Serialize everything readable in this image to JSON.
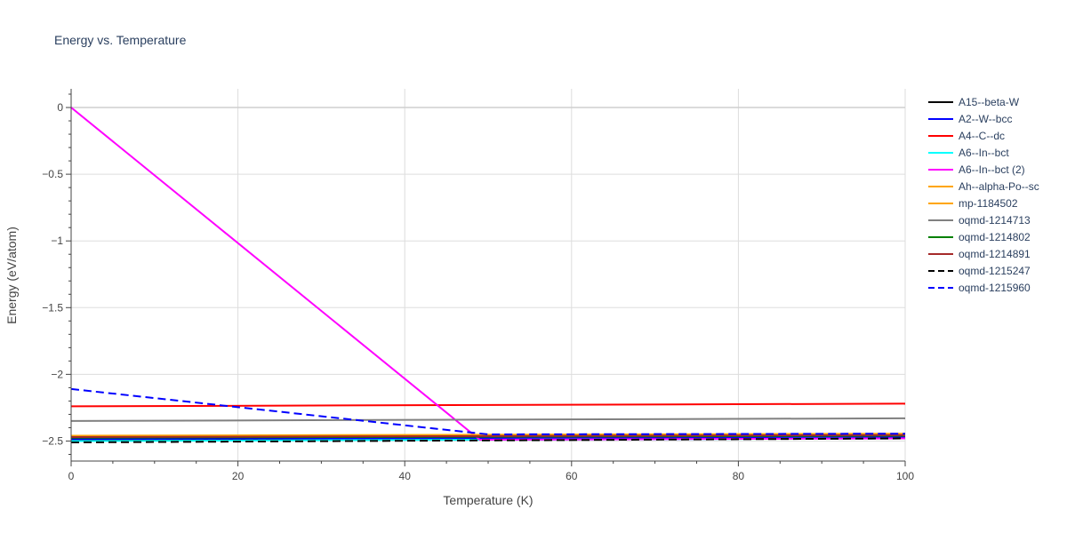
{
  "chart_data": {
    "type": "line",
    "title": "Energy vs. Temperature",
    "xlabel": "Temperature (K)",
    "ylabel": "Energy (eV/atom)",
    "xlim": [
      0,
      100
    ],
    "ylim": [
      -2.65,
      0.14
    ],
    "xticks": [
      0,
      20,
      40,
      60,
      80,
      100
    ],
    "xtick_labels": [
      "0",
      "20",
      "40",
      "60",
      "80",
      "100"
    ],
    "yticks": [
      0,
      -0.5,
      -1,
      -1.5,
      -2,
      -2.5
    ],
    "ytick_labels": [
      "0",
      "−0.5",
      "−1",
      "−1.5",
      "−2",
      "−2.5"
    ],
    "grid": true,
    "legend_position": "right",
    "series": [
      {
        "name": "A15--beta-W",
        "color": "#000000",
        "dash": "solid",
        "x": [
          0,
          100
        ],
        "y": [
          -2.49,
          -2.475
        ]
      },
      {
        "name": "A2--W--bcc",
        "color": "#0000ff",
        "dash": "solid",
        "x": [
          0,
          100
        ],
        "y": [
          -2.485,
          -2.47
        ]
      },
      {
        "name": "A4--C--dc",
        "color": "#ff0000",
        "dash": "solid",
        "x": [
          0,
          100
        ],
        "y": [
          -2.24,
          -2.22
        ]
      },
      {
        "name": "A6--In--bct",
        "color": "#00ffff",
        "dash": "solid",
        "x": [
          0,
          100
        ],
        "y": [
          -2.5,
          -2.48
        ]
      },
      {
        "name": "A6--In--bct (2)",
        "color": "#ff00ff",
        "dash": "solid",
        "x": [
          0,
          49,
          100
        ],
        "y": [
          0,
          -2.49,
          -2.48
        ]
      },
      {
        "name": "Ah--alpha-Po--sc",
        "color": "#ffa500",
        "dash": "solid",
        "x": [
          0,
          100
        ],
        "y": [
          -2.465,
          -2.45
        ]
      },
      {
        "name": "mp-1184502",
        "color": "#ffa500",
        "dash": "solid",
        "x": [
          0,
          100
        ],
        "y": [
          -2.46,
          -2.445
        ]
      },
      {
        "name": "oqmd-1214713",
        "color": "#808080",
        "dash": "solid",
        "x": [
          0,
          100
        ],
        "y": [
          -2.35,
          -2.33
        ]
      },
      {
        "name": "oqmd-1214802",
        "color": "#008000",
        "dash": "solid",
        "x": [
          0,
          100
        ],
        "y": [
          -2.475,
          -2.46
        ]
      },
      {
        "name": "oqmd-1214891",
        "color": "#a52a2a",
        "dash": "solid",
        "x": [
          0,
          100
        ],
        "y": [
          -2.47,
          -2.455
        ]
      },
      {
        "name": "oqmd-1215247",
        "color": "#000000",
        "dash": "dash",
        "x": [
          0,
          100
        ],
        "y": [
          -2.51,
          -2.48
        ]
      },
      {
        "name": "oqmd-1215960",
        "color": "#0000ff",
        "dash": "dash",
        "x": [
          0,
          50,
          100
        ],
        "y": [
          -2.11,
          -2.45,
          -2.445
        ]
      }
    ]
  }
}
